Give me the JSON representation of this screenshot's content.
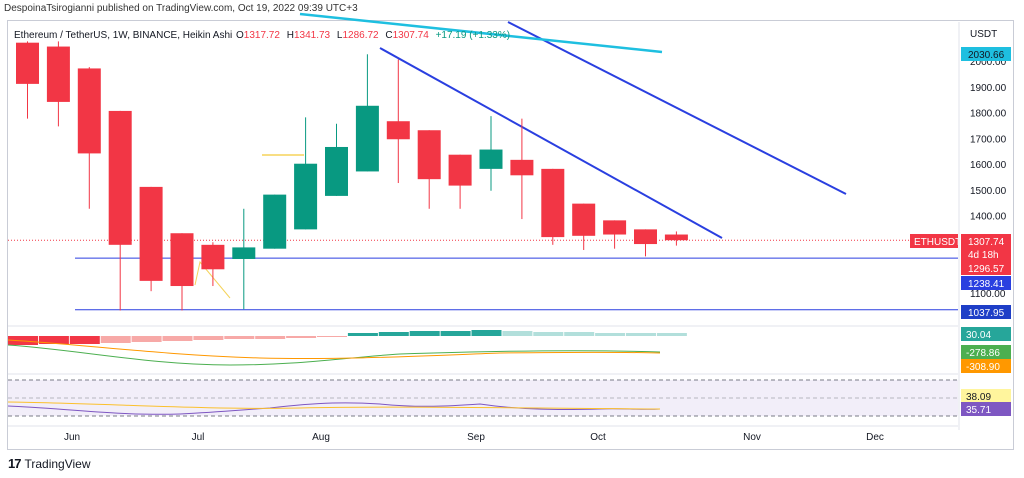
{
  "header": {
    "publisher_line": "DespoinaTsirogianni published on TradingView.com, Oct 19, 2022 09:39 UTC+3"
  },
  "footer": {
    "brand": "TradingView",
    "logo_icon": "tradingview-logo-icon"
  },
  "legend": {
    "symbol": "Ethereum / TetherUS, 1W, BINANCE, Heikin Ashi",
    "open_label": "O",
    "open": "1317.72",
    "high_label": "H",
    "high": "1341.73",
    "low_label": "L",
    "low": "1286.72",
    "close_label": "C",
    "close": "1307.74",
    "change": "+17.19 (+1.33%)"
  },
  "colors": {
    "up": "#089981",
    "down": "#f23645",
    "trendline": "#2a3fe0",
    "cyan_line": "#1ebfe0",
    "hline": "#2a3fe0",
    "ma_green": "#4caf50",
    "ma_orange": "#ff9800",
    "rsi": "#7e57c2",
    "rsi_ma": "#fbc02d"
  },
  "chart_data": {
    "type": "candlestick",
    "title": "Ethereum / TetherUS, 1W, BINANCE, Heikin Ashi",
    "currency": "USDT",
    "x_labels": [
      "Jun",
      "Jul",
      "Aug",
      "Sep",
      "Oct",
      "Nov",
      "Dec"
    ],
    "y_ticks": [
      1100,
      1200,
      1300,
      1400,
      1500,
      1600,
      1700,
      1800,
      1900,
      2000
    ],
    "ylim": [
      1030,
      2080
    ],
    "candles": [
      {
        "o": 2075,
        "h": 2080,
        "l": 1780,
        "c": 1915
      },
      {
        "o": 2060,
        "h": 2080,
        "l": 1750,
        "c": 1845
      },
      {
        "o": 1975,
        "h": 1980,
        "l": 1430,
        "c": 1645
      },
      {
        "o": 1810,
        "h": 1810,
        "l": 1035,
        "c": 1290
      },
      {
        "o": 1515,
        "h": 1515,
        "l": 1110,
        "c": 1150
      },
      {
        "o": 1335,
        "h": 1335,
        "l": 1035,
        "c": 1130
      },
      {
        "o": 1290,
        "h": 1300,
        "l": 1130,
        "c": 1195
      },
      {
        "o": 1235,
        "h": 1430,
        "l": 1040,
        "c": 1280
      },
      {
        "o": 1275,
        "h": 1485,
        "l": 1275,
        "c": 1485
      },
      {
        "o": 1350,
        "h": 1785,
        "l": 1350,
        "c": 1605
      },
      {
        "o": 1480,
        "h": 1760,
        "l": 1480,
        "c": 1670
      },
      {
        "o": 1575,
        "h": 2030,
        "l": 1575,
        "c": 1830
      },
      {
        "o": 1770,
        "h": 2010,
        "l": 1530,
        "c": 1700
      },
      {
        "o": 1735,
        "h": 1735,
        "l": 1430,
        "c": 1545
      },
      {
        "o": 1640,
        "h": 1640,
        "l": 1430,
        "c": 1520
      },
      {
        "o": 1585,
        "h": 1790,
        "l": 1500,
        "c": 1660
      },
      {
        "o": 1620,
        "h": 1780,
        "l": 1390,
        "c": 1560
      },
      {
        "o": 1585,
        "h": 1585,
        "l": 1290,
        "c": 1320
      },
      {
        "o": 1450,
        "h": 1450,
        "l": 1270,
        "c": 1325
      },
      {
        "o": 1385,
        "h": 1385,
        "l": 1275,
        "c": 1330
      },
      {
        "o": 1350,
        "h": 1350,
        "l": 1245,
        "c": 1293
      },
      {
        "o": 1330,
        "h": 1342,
        "l": 1287,
        "c": 1308
      }
    ],
    "horizontal_lines": [
      1238.41,
      1037.95
    ],
    "price_tags": [
      {
        "label": "USDT",
        "value": null
      },
      {
        "label": "2030.66",
        "value": 2030.66
      },
      {
        "label": "1307.74",
        "value": 1307.74
      },
      {
        "label": "4d 18h",
        "value": null
      },
      {
        "label": "1296.57",
        "value": 1296.57
      },
      {
        "label": "1238.41",
        "value": 1238.41
      },
      {
        "label": "1037.95",
        "value": 1037.95
      }
    ],
    "symbol_tag": "ETHUSDT",
    "macd": {
      "labels": [
        "30.04",
        "-278.86",
        "-308.90"
      ]
    },
    "rsi": {
      "labels": [
        "38.09",
        "35.71"
      ]
    }
  }
}
